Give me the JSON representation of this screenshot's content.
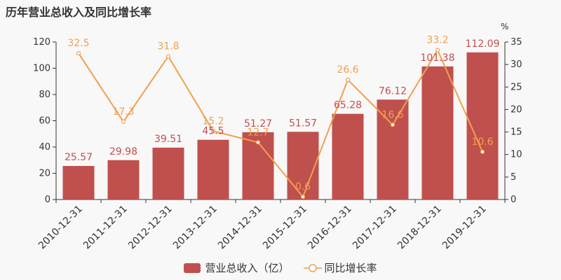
{
  "chart_data": {
    "type": "bar",
    "title": "历年营业总收入及同比增长率",
    "categories": [
      "2010-12-31",
      "2011-12-31",
      "2012-12-31",
      "2013-12-31",
      "2014-12-31",
      "2015-12-31",
      "2016-12-31",
      "2017-12-31",
      "2018-12-31",
      "2019-12-31"
    ],
    "series": [
      {
        "name": "营业总收入（亿）",
        "type": "bar",
        "axis": "left",
        "values": [
          25.57,
          29.98,
          39.51,
          45.5,
          51.27,
          51.57,
          65.28,
          76.12,
          101.38,
          112.09
        ],
        "color": "#c0504d"
      },
      {
        "name": "同比增长率",
        "type": "line",
        "axis": "right",
        "values": [
          32.5,
          17.3,
          31.8,
          15.2,
          12.7,
          0.6,
          26.6,
          16.6,
          33.2,
          10.6
        ],
        "color": "#f0a050"
      }
    ],
    "ylim_left": [
      0,
      120
    ],
    "yticks_left": [
      0,
      20,
      40,
      60,
      80,
      100,
      120
    ],
    "ylim_right": [
      0,
      35
    ],
    "yticks_right": [
      0,
      5,
      10,
      15,
      20,
      25,
      30,
      35
    ],
    "y2label": "%",
    "grid": false,
    "legend_position": "bottom"
  }
}
